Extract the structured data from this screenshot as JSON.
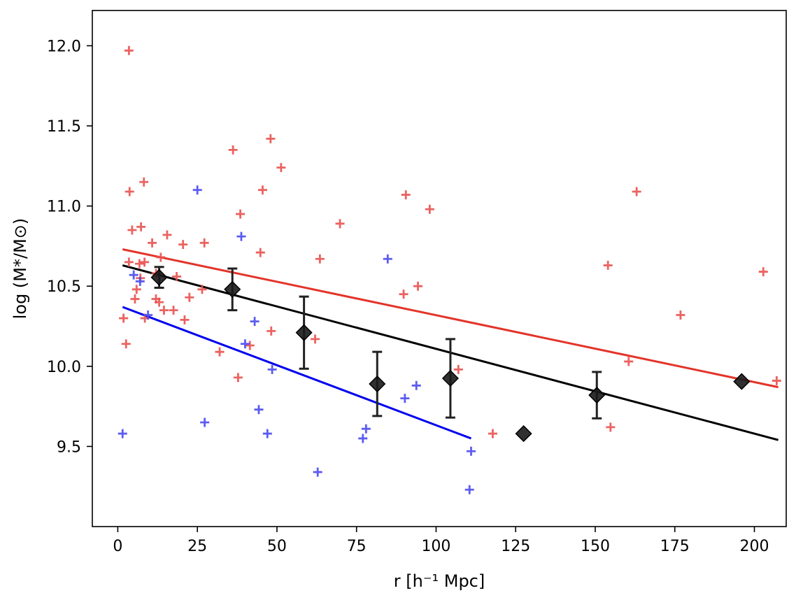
{
  "chart_data": {
    "type": "scatter",
    "title": "",
    "xlabel": "r [h⁻¹ Mpc]",
    "ylabel": "log (M*/M⊙)",
    "xlim": [
      -8,
      210
    ],
    "ylim": [
      9.0,
      12.22
    ],
    "x_ticks": [
      0,
      25,
      50,
      75,
      100,
      125,
      150,
      175,
      200
    ],
    "y_ticks": [
      9.5,
      10.0,
      10.5,
      11.0,
      11.5,
      12.0
    ],
    "x_tick_labels": [
      "0",
      "25",
      "50",
      "75",
      "100",
      "125",
      "150",
      "175",
      "200"
    ],
    "y_tick_labels": [
      "9.5",
      "10.0",
      "10.5",
      "11.0",
      "11.5",
      "12.0"
    ],
    "colors": {
      "red": "#e8524f",
      "blue": "#4a4aef",
      "red_line": "#e3342a",
      "blue_line": "#0000ee",
      "black": "#000000"
    },
    "series": [
      {
        "name": "red galaxies",
        "marker": "plus",
        "color": "#e8524f",
        "points": [
          [
            3.5,
            11.97
          ],
          [
            3.7,
            11.09
          ],
          [
            8.2,
            11.15
          ],
          [
            4.5,
            10.85
          ],
          [
            7.3,
            10.87
          ],
          [
            15.5,
            10.82
          ],
          [
            10.8,
            10.77
          ],
          [
            20.5,
            10.76
          ],
          [
            27.2,
            10.77
          ],
          [
            13.5,
            10.68
          ],
          [
            3.5,
            10.65
          ],
          [
            6.8,
            10.64
          ],
          [
            8.4,
            10.65
          ],
          [
            7.1,
            10.55
          ],
          [
            12.0,
            10.58
          ],
          [
            18.5,
            10.56
          ],
          [
            5.9,
            10.48
          ],
          [
            5.4,
            10.42
          ],
          [
            12.0,
            10.42
          ],
          [
            13.0,
            10.4
          ],
          [
            8.5,
            10.3
          ],
          [
            1.8,
            10.3
          ],
          [
            14.5,
            10.35
          ],
          [
            17.5,
            10.35
          ],
          [
            22.5,
            10.43
          ],
          [
            26.5,
            10.48
          ],
          [
            21.0,
            10.29
          ],
          [
            2.6,
            10.14
          ],
          [
            32.0,
            10.09
          ],
          [
            36.2,
            11.35
          ],
          [
            38.5,
            10.95
          ],
          [
            48.0,
            11.42
          ],
          [
            51.3,
            11.24
          ],
          [
            45.5,
            11.1
          ],
          [
            44.8,
            10.71
          ],
          [
            41.5,
            10.13
          ],
          [
            37.8,
            9.93
          ],
          [
            48.2,
            10.22
          ],
          [
            62.0,
            10.17
          ],
          [
            63.5,
            10.67
          ],
          [
            69.8,
            10.89
          ],
          [
            90.5,
            11.07
          ],
          [
            98.0,
            10.98
          ],
          [
            89.8,
            10.45
          ],
          [
            94.3,
            10.5
          ],
          [
            107.0,
            9.98
          ],
          [
            117.8,
            9.58
          ],
          [
            154.0,
            10.63
          ],
          [
            154.8,
            9.62
          ],
          [
            163.0,
            11.09
          ],
          [
            160.5,
            10.03
          ],
          [
            176.8,
            10.32
          ],
          [
            202.8,
            10.59
          ],
          [
            207.0,
            9.91
          ]
        ]
      },
      {
        "name": "blue galaxies",
        "marker": "plus",
        "color": "#4a4aef",
        "points": [
          [
            25.0,
            11.1
          ],
          [
            38.8,
            10.81
          ],
          [
            5.0,
            10.57
          ],
          [
            7.0,
            10.53
          ],
          [
            9.5,
            10.32
          ],
          [
            1.5,
            9.58
          ],
          [
            27.3,
            9.65
          ],
          [
            43.0,
            10.28
          ],
          [
            40.0,
            10.14
          ],
          [
            48.5,
            9.98
          ],
          [
            44.3,
            9.73
          ],
          [
            47.0,
            9.58
          ],
          [
            62.8,
            9.34
          ],
          [
            77.0,
            9.55
          ],
          [
            78.0,
            9.61
          ],
          [
            84.8,
            10.67
          ],
          [
            93.8,
            9.88
          ],
          [
            90.2,
            9.8
          ],
          [
            111.0,
            9.47
          ],
          [
            110.5,
            9.23
          ]
        ]
      },
      {
        "name": "binned mean",
        "marker": "diamond",
        "color": "#000000",
        "points": [
          [
            13.0,
            10.555
          ],
          [
            36.0,
            10.48
          ],
          [
            58.5,
            10.21
          ],
          [
            81.5,
            9.89
          ],
          [
            104.5,
            9.925
          ],
          [
            127.5,
            9.58
          ],
          [
            150.5,
            9.82
          ],
          [
            196.0,
            9.905
          ]
        ],
        "errors": [
          0.065,
          0.13,
          0.225,
          0.2,
          0.245,
          null,
          0.145,
          null
        ]
      }
    ],
    "fit_lines": [
      {
        "name": "red fit",
        "color": "#e3342a",
        "x": [
          1.5,
          207.5
        ],
        "y": [
          10.73,
          9.87
        ]
      },
      {
        "name": "black fit",
        "color": "#000000",
        "x": [
          1.5,
          207.5
        ],
        "y": [
          10.63,
          9.54
        ]
      },
      {
        "name": "blue fit",
        "color": "#0000ee",
        "x": [
          1.5,
          111.0
        ],
        "y": [
          10.37,
          9.55
        ]
      }
    ]
  }
}
